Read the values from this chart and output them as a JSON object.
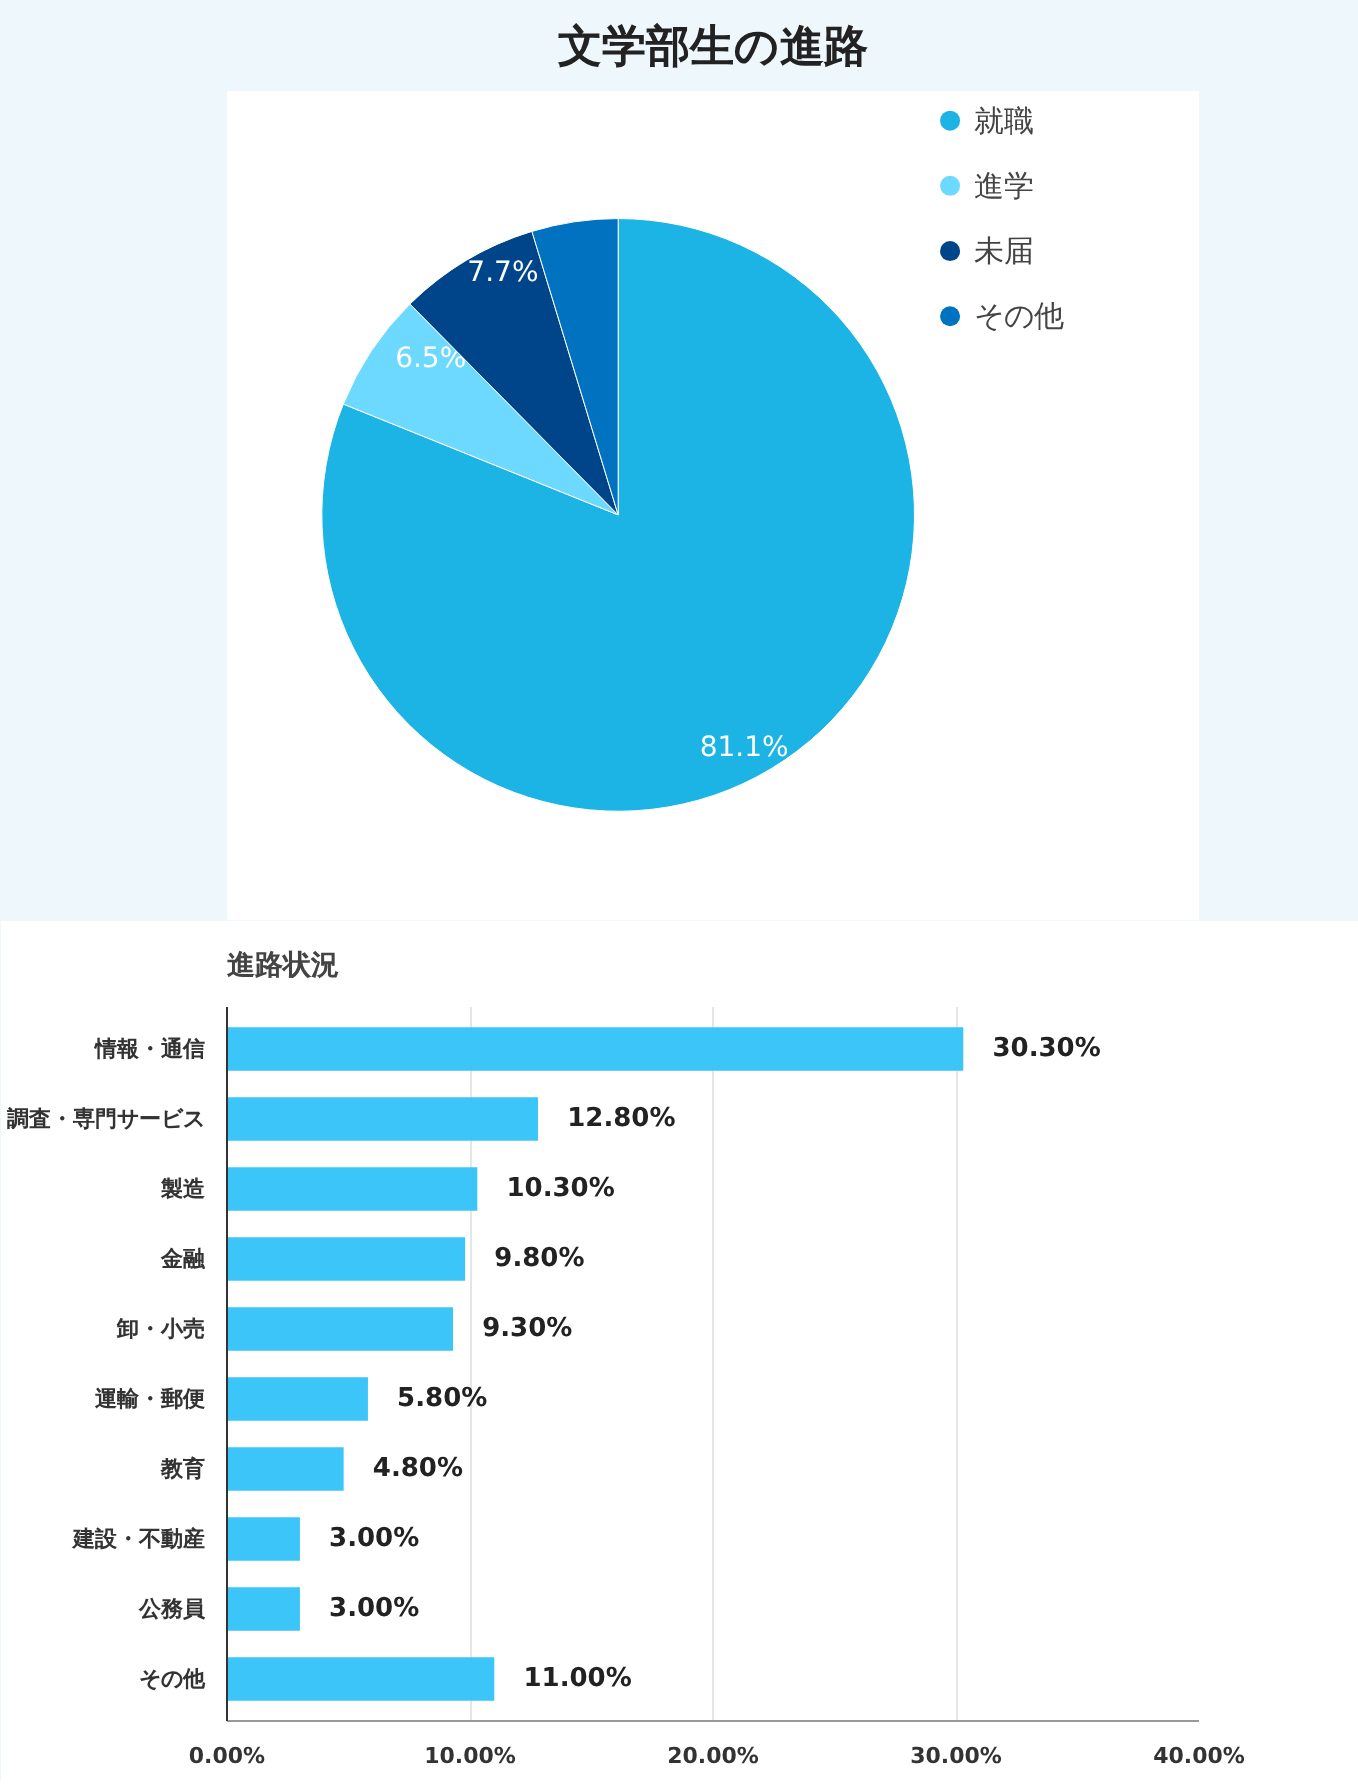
{
  "chart_data": [
    {
      "type": "pie",
      "title": "文学部生の進路",
      "categories": [
        "就職",
        "進学",
        "未届",
        "その他"
      ],
      "values": [
        81.1,
        6.5,
        7.7,
        4.7
      ],
      "colors": [
        "#1cb4e4",
        "#6ed9fe",
        "#00458a",
        "#0172bf"
      ],
      "value_labels": [
        "81.1%",
        "6.5%",
        "7.7%",
        null
      ],
      "legend": "top right"
    },
    {
      "type": "bar",
      "orientation": "horizontal",
      "title": "進路状況",
      "categories": [
        "情報・通信",
        "調査・専門サービス",
        "製造",
        "金融",
        "卸・小売",
        "運輸・郵便",
        "教育",
        "建設・不動産",
        "公務員",
        "その他"
      ],
      "values": [
        30.3,
        12.8,
        10.3,
        9.8,
        9.3,
        5.8,
        4.8,
        3.0,
        3.0,
        11.0
      ],
      "value_labels": [
        "30.30%",
        "12.80%",
        "10.30%",
        "9.80%",
        "9.30%",
        "5.80%",
        "4.80%",
        "3.00%",
        "3.00%",
        "11.00%"
      ],
      "color": "#3bc5f8",
      "xlim": [
        0,
        40
      ],
      "xticks": [
        {
          "value": 0,
          "label": "0.00%"
        },
        {
          "value": 10,
          "label": "10.00%"
        },
        {
          "value": 20,
          "label": "20.00%"
        },
        {
          "value": 30,
          "label": "30.00%"
        },
        {
          "value": 40,
          "label": "40.00%"
        }
      ],
      "grid": "x"
    }
  ]
}
